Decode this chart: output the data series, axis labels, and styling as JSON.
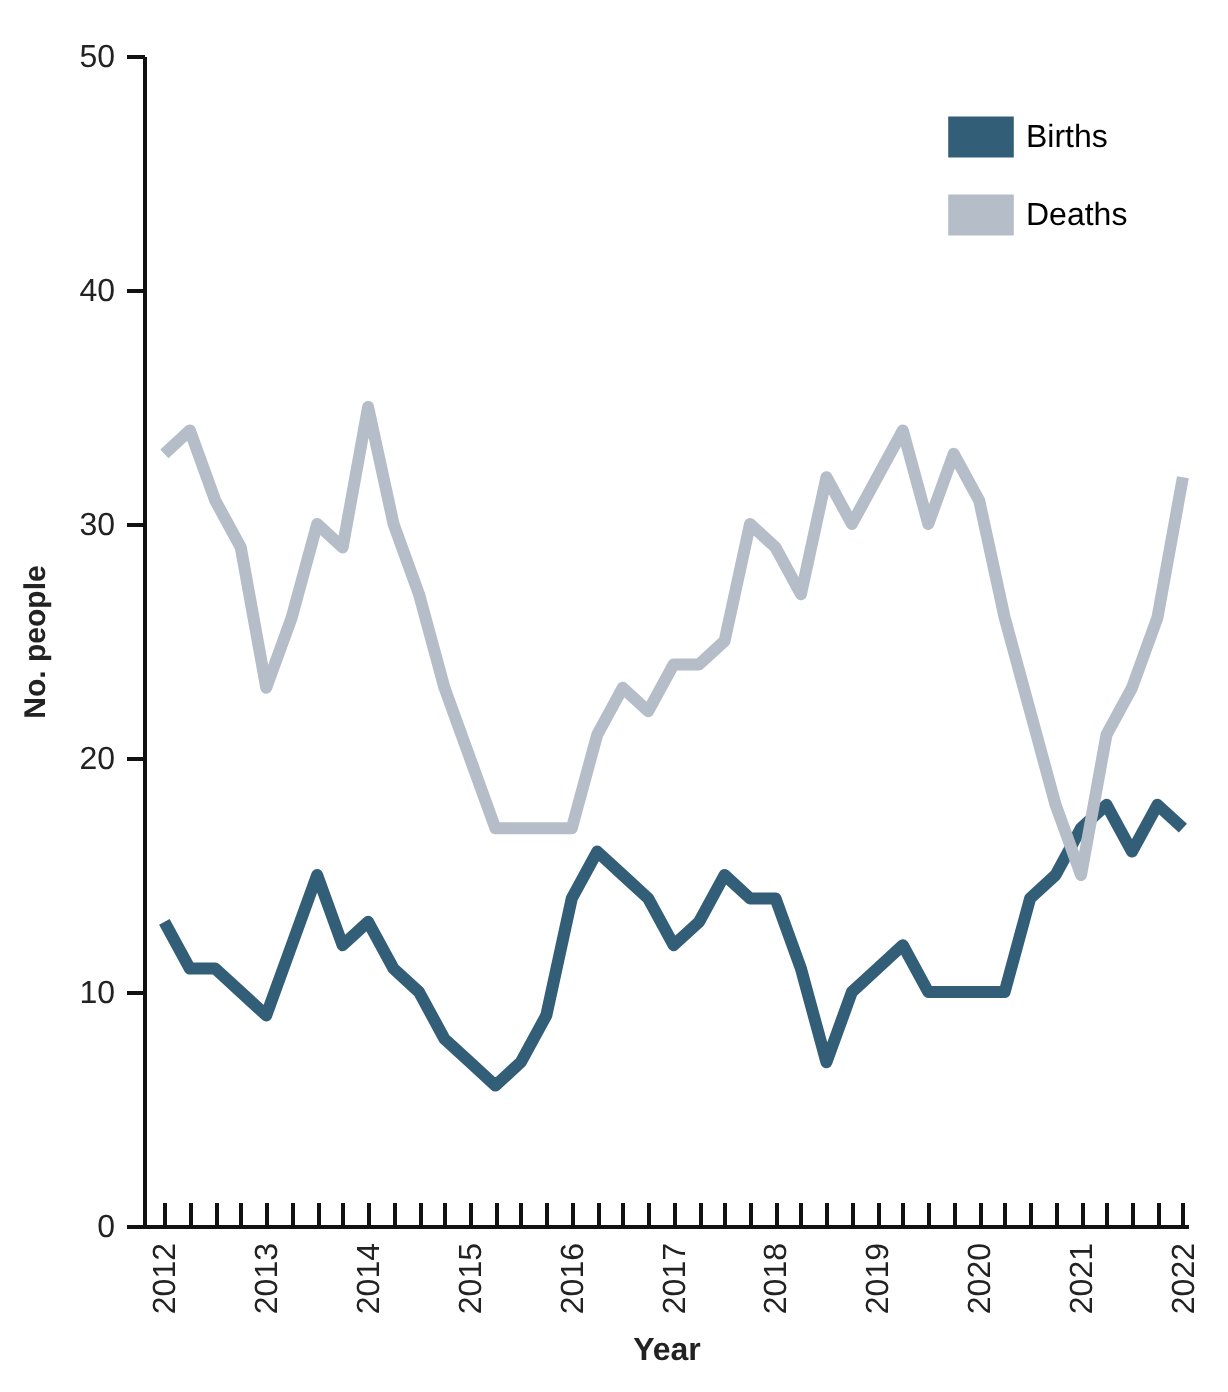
{
  "chart_data": {
    "type": "line",
    "xlabel": "Year",
    "ylabel": "No. people",
    "x": [
      2012,
      2012.25,
      2012.5,
      2012.75,
      2013,
      2013.25,
      2013.5,
      2013.75,
      2014,
      2014.25,
      2014.5,
      2014.75,
      2015,
      2015.25,
      2015.5,
      2015.75,
      2016,
      2016.25,
      2016.5,
      2016.75,
      2017,
      2017.25,
      2017.5,
      2017.75,
      2018,
      2018.25,
      2018.5,
      2018.75,
      2019,
      2019.25,
      2019.5,
      2019.75,
      2020,
      2020.25,
      2020.5,
      2020.75,
      2021,
      2021.25,
      2021.5,
      2021.75,
      2022
    ],
    "series": [
      {
        "name": "Births",
        "color": "#335e77",
        "values": [
          13,
          11,
          11,
          10,
          9,
          12,
          15,
          12,
          13,
          11,
          10,
          8,
          7,
          6,
          7,
          9,
          14,
          16,
          15,
          14,
          12,
          13,
          15,
          14,
          14,
          11,
          7,
          10,
          11,
          12,
          10,
          10,
          10,
          10,
          14,
          15,
          17,
          18,
          16,
          18,
          17
        ]
      },
      {
        "name": "Deaths",
        "color": "#b5bdc8",
        "values": [
          33,
          34,
          31,
          29,
          23,
          26,
          30,
          29,
          35,
          30,
          27,
          23,
          20,
          17,
          17,
          17,
          17,
          21,
          23,
          22,
          24,
          24,
          25,
          30,
          29,
          27,
          32,
          30,
          32,
          34,
          30,
          33,
          31,
          26,
          22,
          18,
          15,
          21,
          23,
          26,
          32
        ]
      }
    ],
    "xlim": [
      2011.8,
      2022.05
    ],
    "ylim": [
      0,
      50
    ],
    "yticks": [
      0,
      10,
      20,
      30,
      40,
      50
    ],
    "xticks": [
      2012,
      {
        "value": 2012.25,
        "label": null
      },
      {
        "value": 2012.5,
        "label": null
      },
      {
        "value": 2012.75,
        "label": null
      },
      2013,
      {
        "value": 2013.25,
        "label": null
      },
      {
        "value": 2013.5,
        "label": null
      },
      {
        "value": 2013.75,
        "label": null
      },
      2014,
      {
        "value": 2014.25,
        "label": null
      },
      {
        "value": 2014.5,
        "label": null
      },
      {
        "value": 2014.75,
        "label": null
      },
      2015,
      {
        "value": 2015.25,
        "label": null
      },
      {
        "value": 2015.5,
        "label": null
      },
      {
        "value": 2015.75,
        "label": null
      },
      2016,
      {
        "value": 2016.25,
        "label": null
      },
      {
        "value": 2016.5,
        "label": null
      },
      {
        "value": 2016.75,
        "label": null
      },
      2017,
      {
        "value": 2017.25,
        "label": null
      },
      {
        "value": 2017.5,
        "label": null
      },
      {
        "value": 2017.75,
        "label": null
      },
      2018,
      {
        "value": 2018.25,
        "label": null
      },
      {
        "value": 2018.5,
        "label": null
      },
      {
        "value": 2018.75,
        "label": null
      },
      2019,
      {
        "value": 2019.25,
        "label": null
      },
      {
        "value": 2019.5,
        "label": null
      },
      {
        "value": 2019.75,
        "label": null
      },
      2020,
      {
        "value": 2020.25,
        "label": null
      },
      {
        "value": 2020.5,
        "label": null
      },
      {
        "value": 2020.75,
        "label": null
      },
      2021,
      {
        "value": 2021.25,
        "label": null
      },
      {
        "value": 2021.5,
        "label": null
      },
      {
        "value": 2021.75,
        "label": null
      },
      2022
    ],
    "grid": false,
    "legend": "top right",
    "marker": "none",
    "line_style": "solid"
  }
}
